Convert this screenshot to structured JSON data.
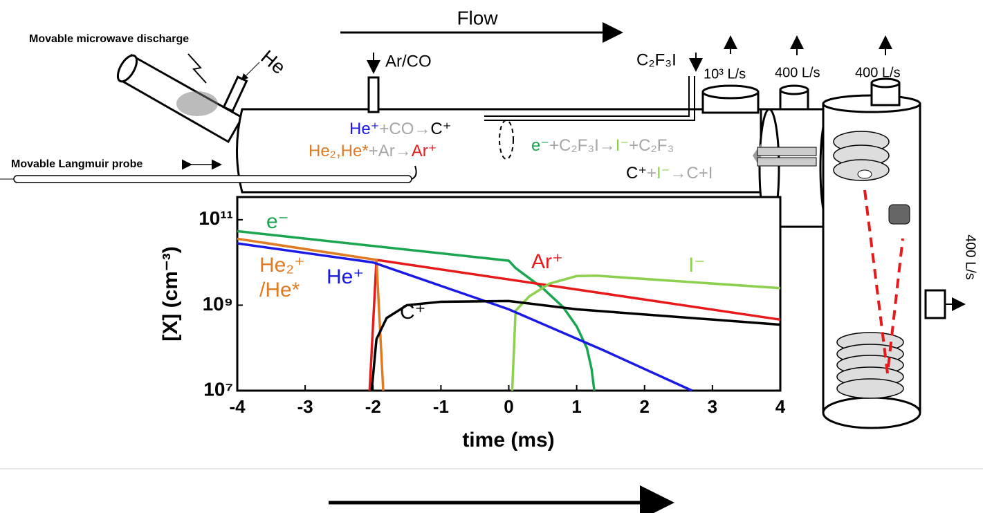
{
  "labels": {
    "flow": "Flow",
    "discharge": "Movable microwave discharge",
    "he_inlet": "He",
    "arco_inlet": "Ar/CO",
    "c2f3i_inlet": "C₂F₃I",
    "probe": "Movable Langmuir probe",
    "pump1": "10³ L/s",
    "pump2": "400 L/s",
    "pump3": "400 L/s",
    "pump4": "400 L/s"
  },
  "reactions": [
    [
      {
        "text": "He⁺",
        "color": "#1a1ae6"
      },
      {
        "text": "+CO",
        "color": "#a6a6a6"
      },
      {
        "text": "→",
        "color": "#a6a6a6"
      },
      {
        "text": "C⁺",
        "color": "#000000"
      }
    ],
    [
      {
        "text": "He₂,He*",
        "color": "#e07b24"
      },
      {
        "text": "+Ar",
        "color": "#a6a6a6"
      },
      {
        "text": "→",
        "color": "#a6a6a6"
      },
      {
        "text": "Ar⁺",
        "color": "#e61a1a"
      }
    ],
    [
      {
        "text": "e⁻",
        "color": "#1aa650"
      },
      {
        "text": "+C₂F₃I",
        "color": "#a6a6a6"
      },
      {
        "text": "→",
        "color": "#a6a6a6"
      },
      {
        "text": "I⁻",
        "color": "#8cd04e"
      },
      {
        "text": "+C₂F₃",
        "color": "#a6a6a6"
      }
    ],
    [
      {
        "text": "C⁺",
        "color": "#000000"
      },
      {
        "text": "+",
        "color": "#a6a6a6"
      },
      {
        "text": "I⁻",
        "color": "#8cd04e"
      },
      {
        "text": "→",
        "color": "#a6a6a6"
      },
      {
        "text": "C+I",
        "color": "#a6a6a6"
      }
    ]
  ],
  "chart_data": {
    "type": "line",
    "x_label": "time (ms)",
    "y_label": "[X] (cm⁻³)",
    "log_y": true,
    "xlim": [
      -4,
      4
    ],
    "xticks": [
      -4,
      -3,
      -2,
      -1,
      0,
      1,
      2,
      3,
      4
    ],
    "ylim": [
      10000000.0,
      340000000000.0
    ],
    "yticks": [
      {
        "value": 10000000.0,
        "label": "10⁷"
      },
      {
        "value": 1000000000.0,
        "label": "10⁹"
      },
      {
        "value": 100000000000.0,
        "label": "10¹¹"
      }
    ],
    "series": [
      {
        "name": "e⁻",
        "color": "#1aa650",
        "x": [
          -4,
          0,
          0.1,
          0.5,
          0.8,
          1.0,
          1.15,
          1.22,
          1.26
        ],
        "values": [
          54000000000.0,
          11000000000.0,
          7400000000.0,
          2500000000.0,
          900000000.0,
          320000000.0,
          100000000.0,
          32000000.0,
          10000000.0
        ]
      },
      {
        "name": "Ar⁺",
        "color": "#e61a1a",
        "x": [
          -2.05,
          -1.95,
          4
        ],
        "values": [
          10000000.0,
          11500000000.0,
          460000000.0
        ]
      },
      {
        "name": "I⁻",
        "color": "#8cd04e",
        "x": [
          0.05,
          0.1,
          0.3,
          0.6,
          1.0,
          1.3,
          4
        ],
        "values": [
          10000000.0,
          740000000.0,
          1600000000.0,
          3200000000.0,
          4800000000.0,
          4900000000.0,
          2500000000.0
        ]
      },
      {
        "name": "He₂⁺/He*",
        "color": "#e07b24",
        "x": [
          -4,
          -1.95,
          -1.85
        ],
        "values": [
          36000000000.0,
          11500000000.0,
          10000000.0
        ]
      },
      {
        "name": "He⁺",
        "color": "#1a1ae6",
        "x": [
          -4,
          -2,
          0,
          1.4,
          2.7
        ],
        "values": [
          28000000000.0,
          10000000000.0,
          800000000.0,
          87000000.0,
          10000000.0
        ]
      },
      {
        "name": "C⁺",
        "color": "#000000",
        "x": [
          -2.02,
          -1.95,
          -1.8,
          -1.5,
          -1,
          0,
          1,
          4
        ],
        "values": [
          10000000.0,
          160000000.0,
          500000000.0,
          1000000000.0,
          1200000000.0,
          1250000000.0,
          800000000.0,
          350000000.0
        ]
      }
    ]
  }
}
